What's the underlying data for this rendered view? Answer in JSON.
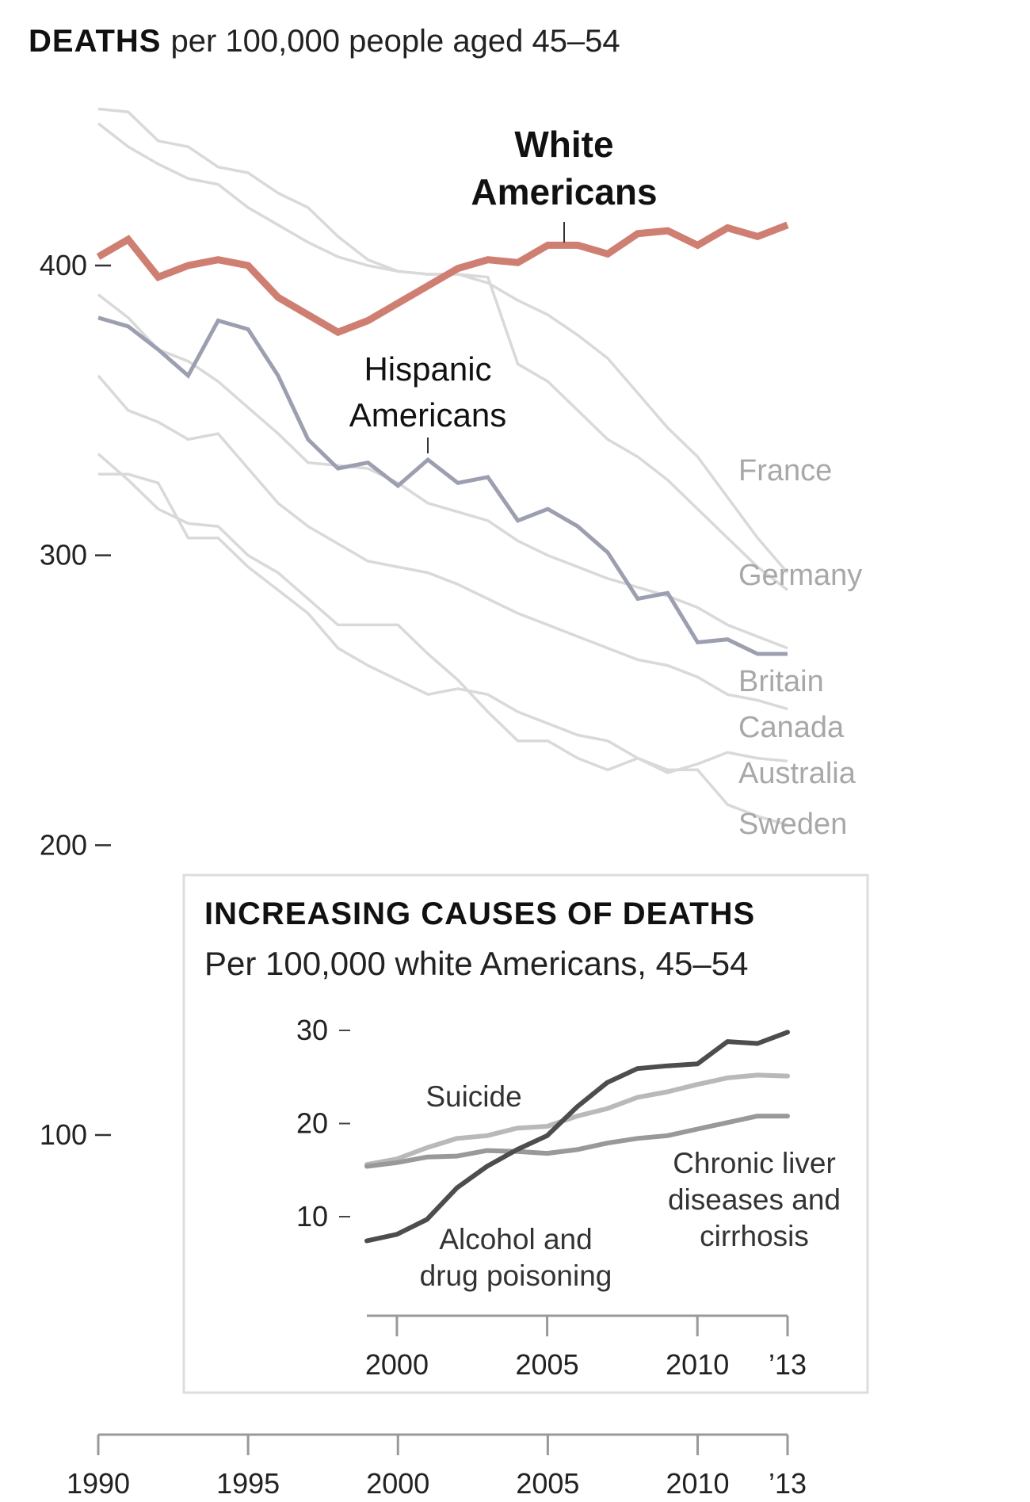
{
  "title": {
    "bold": "DEATHS",
    "rest": "per 100,000 people aged 45–54"
  },
  "colors": {
    "white_americans": "#cf7f72",
    "hispanic_americans": "#9c9fb0",
    "countries": "#d9d9d9",
    "country_label": "#a8a8a8",
    "alcohol_drug": "#4d4d4d",
    "suicide": "#b9b9b9",
    "liver": "#999999",
    "axis": "#999999"
  },
  "chart_data": [
    {
      "type": "line",
      "title": "DEATHS per 100,000 people aged 45–54",
      "xlabel": "",
      "ylabel": "",
      "x": [
        1990,
        1991,
        1992,
        1993,
        1994,
        1995,
        1996,
        1997,
        1998,
        1999,
        2000,
        2001,
        2002,
        2003,
        2004,
        2005,
        2006,
        2007,
        2008,
        2009,
        2010,
        2011,
        2012,
        2013
      ],
      "xlim": [
        1990,
        2013
      ],
      "ylim": [
        100,
        460
      ],
      "x_ticks": [
        {
          "value": 1990,
          "label": "1990"
        },
        {
          "value": 1995,
          "label": "1995"
        },
        {
          "value": 2000,
          "label": "2000"
        },
        {
          "value": 2005,
          "label": "2005"
        },
        {
          "value": 2010,
          "label": "2010"
        },
        {
          "value": 2013,
          "label": "’13"
        }
      ],
      "y_ticks": [
        {
          "value": 400,
          "label": "400"
        },
        {
          "value": 300,
          "label": "300"
        },
        {
          "value": 200,
          "label": "200"
        },
        {
          "value": 100,
          "label": "100"
        }
      ],
      "grid": false,
      "legend": "direct-labels",
      "series": [
        {
          "name": "France",
          "label": "France",
          "highlight": false,
          "values": [
            454,
            453,
            443,
            441,
            434,
            432,
            425,
            420,
            410,
            402,
            398,
            397,
            397,
            396,
            366,
            360,
            350,
            340,
            334,
            326,
            316,
            306,
            296,
            288
          ]
        },
        {
          "name": "Germany",
          "label": "Germany",
          "highlight": false,
          "values": [
            449,
            441,
            435,
            430,
            428,
            420,
            414,
            408,
            403,
            400,
            398,
            397,
            397,
            394,
            388,
            383,
            376,
            368,
            356,
            344,
            334,
            320,
            306,
            294
          ]
        },
        {
          "name": "Britain",
          "label": "Britain",
          "highlight": false,
          "values": [
            390,
            382,
            371,
            367,
            360,
            351,
            342,
            332,
            331,
            330,
            325,
            318,
            315,
            312,
            305,
            300,
            296,
            292,
            289,
            286,
            282,
            276,
            272,
            268
          ]
        },
        {
          "name": "Canada",
          "label": "Canada",
          "highlight": false,
          "values": [
            362,
            350,
            346,
            340,
            342,
            330,
            318,
            310,
            304,
            298,
            296,
            294,
            290,
            285,
            280,
            276,
            272,
            268,
            264,
            262,
            258,
            252,
            250,
            247
          ]
        },
        {
          "name": "Australia",
          "label": "Australia",
          "highlight": false,
          "values": [
            335,
            326,
            316,
            311,
            310,
            300,
            294,
            285,
            276,
            276,
            276,
            266,
            257,
            246,
            236,
            236,
            230,
            226,
            230,
            225,
            228,
            232,
            230,
            229
          ]
        },
        {
          "name": "Sweden",
          "label": "Sweden",
          "highlight": false,
          "values": [
            328,
            328,
            325,
            306,
            306,
            296,
            288,
            280,
            268,
            262,
            257,
            252,
            254,
            252,
            246,
            242,
            238,
            236,
            230,
            226,
            226,
            214,
            210,
            207
          ]
        },
        {
          "name": "Hispanic Americans",
          "label": "Hispanic Americans",
          "highlight": true,
          "values": [
            382,
            379,
            371,
            362,
            381,
            378,
            362,
            340,
            330,
            332,
            324,
            333,
            325,
            327,
            312,
            316,
            310,
            301,
            285,
            287,
            270,
            271,
            266,
            266
          ]
        },
        {
          "name": "White Americans",
          "label": "White Americans",
          "highlight": true,
          "values": [
            403,
            409,
            396,
            400,
            402,
            400,
            389,
            383,
            377,
            381,
            387,
            393,
            399,
            402,
            401,
            407,
            407,
            404,
            411,
            412,
            407,
            413,
            410,
            414
          ]
        }
      ],
      "annotations": [
        {
          "text": "White Americans",
          "year": 2006
        },
        {
          "text": "Hispanic Americans",
          "year": 2001
        }
      ]
    },
    {
      "type": "line",
      "title": "INCREASING CAUSES OF DEATHS",
      "subtitle": "Per 100,000 white Americans, 45–54",
      "xlabel": "",
      "ylabel": "",
      "x": [
        1999,
        2000,
        2001,
        2002,
        2003,
        2004,
        2005,
        2006,
        2007,
        2008,
        2009,
        2010,
        2011,
        2012,
        2013
      ],
      "xlim": [
        1999,
        2013
      ],
      "ylim": [
        0,
        32
      ],
      "x_ticks": [
        {
          "value": 2000,
          "label": "2000"
        },
        {
          "value": 2005,
          "label": "2005"
        },
        {
          "value": 2010,
          "label": "2010"
        },
        {
          "value": 2013,
          "label": "’13"
        }
      ],
      "y_ticks": [
        {
          "value": 30,
          "label": "30"
        },
        {
          "value": 20,
          "label": "20"
        },
        {
          "value": 10,
          "label": "10"
        }
      ],
      "grid": false,
      "legend": "direct-labels",
      "series": [
        {
          "name": "Suicide",
          "label": "Suicide",
          "values": [
            15.6,
            16.2,
            17.4,
            18.4,
            18.7,
            19.5,
            19.7,
            20.8,
            21.6,
            22.8,
            23.4,
            24.2,
            24.9,
            25.2,
            25.1
          ]
        },
        {
          "name": "Chronic liver diseases and cirrhosis",
          "label": "Chronic liver diseases and cirrhosis",
          "values": [
            15.4,
            15.8,
            16.4,
            16.5,
            17.1,
            17.0,
            16.8,
            17.2,
            17.9,
            18.4,
            18.7,
            19.4,
            20.1,
            20.8,
            20.8
          ]
        },
        {
          "name": "Alcohol and drug poisoning",
          "label": "Alcohol and drug poisoning",
          "values": [
            7.4,
            8.1,
            9.7,
            13.1,
            15.4,
            17.2,
            18.7,
            21.8,
            24.4,
            25.9,
            26.2,
            26.4,
            28.8,
            28.6,
            29.8
          ]
        }
      ]
    }
  ],
  "labels": {
    "white_line1": "White",
    "white_line2": "Americans",
    "hispanic_line1": "Hispanic",
    "hispanic_line2": "Americans",
    "suicide": "Suicide",
    "alcohol_line1": "Alcohol and",
    "alcohol_line2": "drug poisoning",
    "liver_line1": "Chronic liver",
    "liver_line2": "diseases and",
    "liver_line3": "cirrhosis"
  }
}
